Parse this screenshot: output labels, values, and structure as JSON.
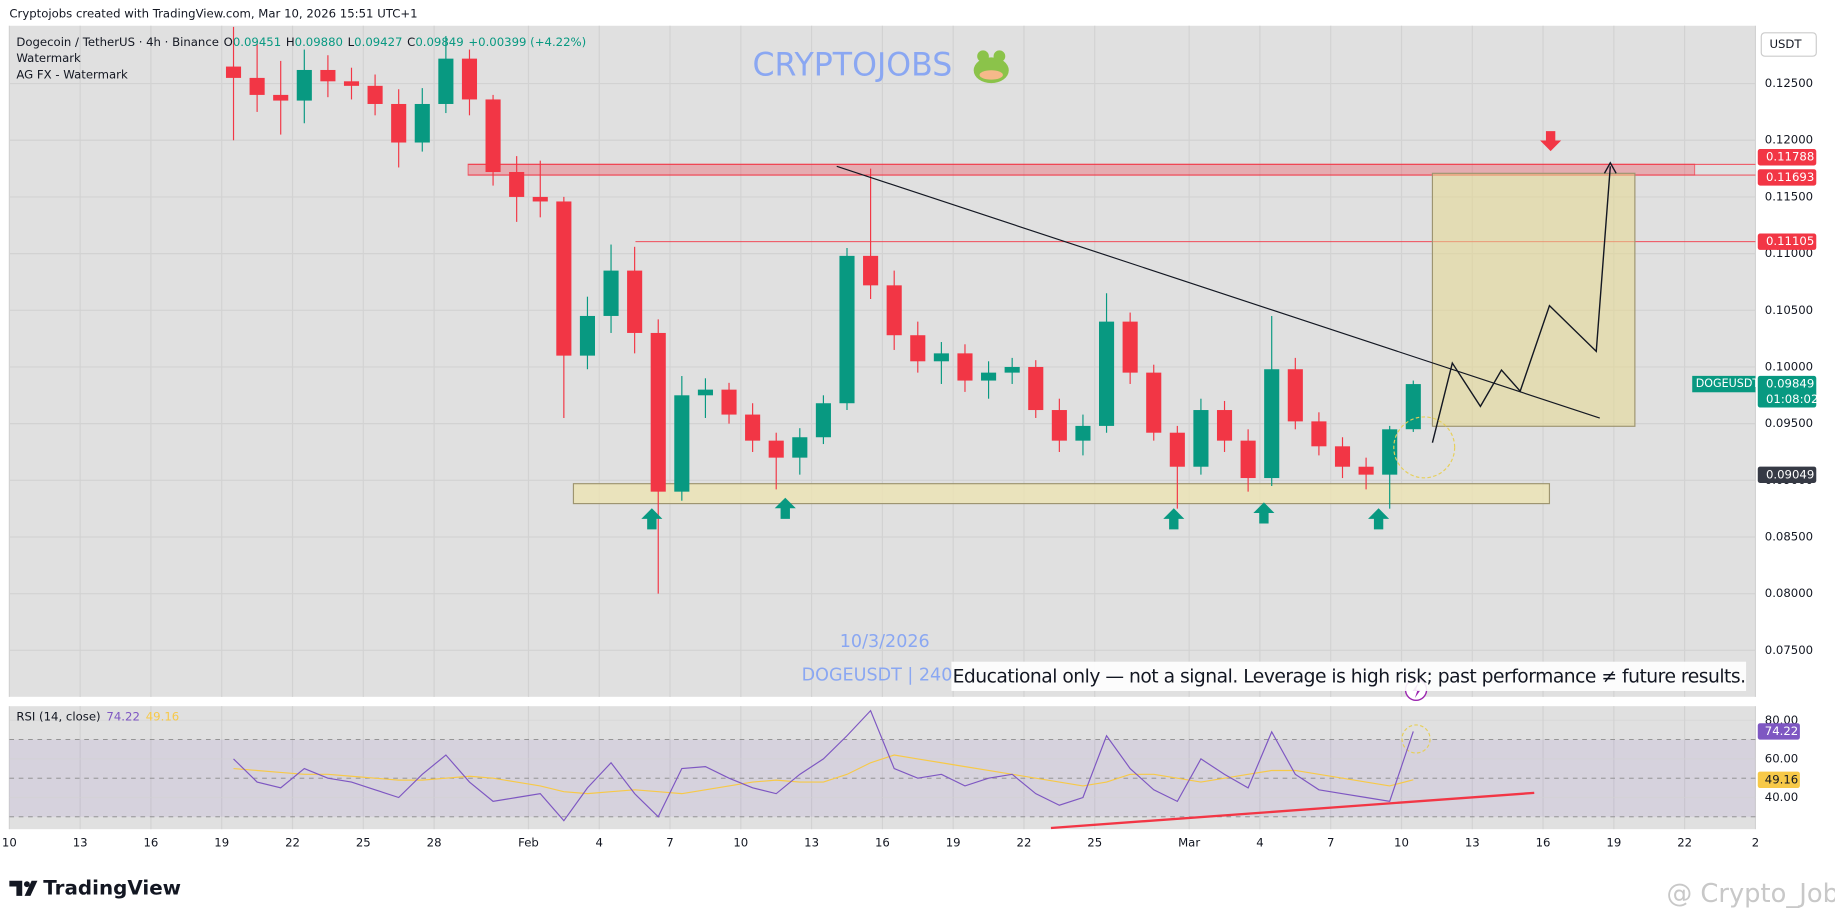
{
  "header": {
    "credit": "Cryptojobs created with TradingView.com, Mar 10, 2026 15:51 UTC+1"
  },
  "overlay": {
    "watermark": "CRYPTOJOBS",
    "date": "10/3/2026",
    "symbol_interval": "DOGEUSDT | 240",
    "disclaimer": "Educational only — not a signal. Leverage is high risk; past performance ≠ future results."
  },
  "footer": {
    "logo": "TradingView",
    "handle": "@ Crypto_Jobs"
  },
  "chart_data": {
    "type": "candlestick",
    "title": "Dogecoin / TetherUS · 4h · Binance",
    "ohlc_legend": [
      {
        "label": "O",
        "value": "0.09451"
      },
      {
        "label": "H",
        "value": "0.09880"
      },
      {
        "label": "L",
        "value": "0.09427"
      },
      {
        "label": "C",
        "value": "0.09849"
      }
    ],
    "change": "+0.00399 (+4.22%)",
    "indicators": [
      "Watermark",
      "AG FX - Watermark"
    ],
    "currency": "USDT",
    "symbol": "DOGEUSDT",
    "countdown": "01:08:02",
    "up_color": "#089981",
    "down_color": "#f23645",
    "grid": true,
    "x": [
      "2026-01-19",
      "2026-01-20",
      "2026-01-21",
      "2026-01-22",
      "2026-01-23",
      "2026-01-24",
      "2026-01-25",
      "2026-01-26",
      "2026-01-27",
      "2026-01-28",
      "2026-01-29",
      "2026-01-30",
      "2026-01-31",
      "2026-02-01",
      "2026-02-02",
      "2026-02-03",
      "2026-02-04",
      "2026-02-05",
      "2026-02-06",
      "2026-02-07",
      "2026-02-08",
      "2026-02-09",
      "2026-02-10",
      "2026-02-11",
      "2026-02-12",
      "2026-02-13",
      "2026-02-14",
      "2026-02-15",
      "2026-02-16",
      "2026-02-17",
      "2026-02-18",
      "2026-02-19",
      "2026-02-20",
      "2026-02-21",
      "2026-02-22",
      "2026-02-23",
      "2026-02-24",
      "2026-02-25",
      "2026-02-26",
      "2026-02-27",
      "2026-02-28",
      "2026-03-01",
      "2026-03-02",
      "2026-03-03",
      "2026-03-04",
      "2026-03-05",
      "2026-03-06",
      "2026-03-07",
      "2026-03-08",
      "2026-03-09",
      "2026-03-10"
    ],
    "open": [
      0.1265,
      0.1255,
      0.124,
      0.1235,
      0.1262,
      0.1252,
      0.1248,
      0.1232,
      0.1198,
      0.1232,
      0.1272,
      0.1236,
      0.1172,
      0.115,
      0.1146,
      0.101,
      0.1045,
      0.1085,
      0.103,
      0.089,
      0.0975,
      0.098,
      0.0958,
      0.0935,
      0.092,
      0.0938,
      0.0968,
      0.1098,
      0.1072,
      0.1028,
      0.1005,
      0.1012,
      0.0988,
      0.0995,
      0.1,
      0.0962,
      0.0935,
      0.0948,
      0.104,
      0.0995,
      0.0942,
      0.0912,
      0.0962,
      0.0935,
      0.0902,
      0.0998,
      0.0952,
      0.093,
      0.0912,
      0.0905,
      0.09451
    ],
    "high": [
      0.13,
      0.1285,
      0.127,
      0.128,
      0.1275,
      0.1264,
      0.1258,
      0.1245,
      0.1246,
      0.1292,
      0.128,
      0.124,
      0.1186,
      0.1182,
      0.115,
      0.1062,
      0.1108,
      0.1106,
      0.1042,
      0.0992,
      0.099,
      0.0986,
      0.0968,
      0.0942,
      0.0946,
      0.0975,
      0.1105,
      0.1175,
      0.1085,
      0.104,
      0.1022,
      0.102,
      0.1005,
      0.1008,
      0.1006,
      0.0972,
      0.0958,
      0.1065,
      0.1048,
      0.1002,
      0.0948,
      0.0972,
      0.097,
      0.0945,
      0.1045,
      0.1008,
      0.096,
      0.0938,
      0.092,
      0.0948,
      0.0988
    ],
    "low": [
      0.12,
      0.1225,
      0.1205,
      0.1215,
      0.1238,
      0.1236,
      0.1222,
      0.1176,
      0.119,
      0.1224,
      0.1222,
      0.116,
      0.1128,
      0.1132,
      0.0955,
      0.0998,
      0.103,
      0.1012,
      0.08,
      0.0882,
      0.0955,
      0.095,
      0.0925,
      0.0892,
      0.0905,
      0.0932,
      0.0962,
      0.106,
      0.1015,
      0.0995,
      0.0985,
      0.0978,
      0.0972,
      0.0985,
      0.0955,
      0.0925,
      0.0922,
      0.0942,
      0.0985,
      0.0935,
      0.0875,
      0.0905,
      0.0925,
      0.089,
      0.0895,
      0.0945,
      0.0922,
      0.0902,
      0.0892,
      0.0875,
      0.09427
    ],
    "close": [
      0.1255,
      0.124,
      0.1235,
      0.1262,
      0.1252,
      0.1248,
      0.1232,
      0.1198,
      0.1232,
      0.1272,
      0.1236,
      0.1172,
      0.115,
      0.1146,
      0.101,
      0.1045,
      0.1085,
      0.103,
      0.089,
      0.0975,
      0.098,
      0.0958,
      0.0935,
      0.092,
      0.0938,
      0.0968,
      0.1098,
      0.1072,
      0.1028,
      0.1005,
      0.1012,
      0.0988,
      0.0995,
      0.1,
      0.0962,
      0.0935,
      0.0948,
      0.104,
      0.0995,
      0.0942,
      0.0912,
      0.0962,
      0.0935,
      0.0902,
      0.0998,
      0.0952,
      0.093,
      0.0912,
      0.0905,
      0.0945,
      0.09849
    ],
    "xlim": [
      "2026-01-10",
      "2026-03-25"
    ],
    "xticks": [
      {
        "value": "2026-01-10",
        "label": "10"
      },
      {
        "value": "2026-01-13",
        "label": "13"
      },
      {
        "value": "2026-01-16",
        "label": "16"
      },
      {
        "value": "2026-01-19",
        "label": "19"
      },
      {
        "value": "2026-01-22",
        "label": "22"
      },
      {
        "value": "2026-01-25",
        "label": "25"
      },
      {
        "value": "2026-01-28",
        "label": "28"
      },
      {
        "value": "2026-02-01",
        "label": "Feb"
      },
      {
        "value": "2026-02-04",
        "label": "4"
      },
      {
        "value": "2026-02-07",
        "label": "7"
      },
      {
        "value": "2026-02-10",
        "label": "10"
      },
      {
        "value": "2026-02-13",
        "label": "13"
      },
      {
        "value": "2026-02-16",
        "label": "16"
      },
      {
        "value": "2026-02-19",
        "label": "19"
      },
      {
        "value": "2026-02-22",
        "label": "22"
      },
      {
        "value": "2026-02-25",
        "label": "25"
      },
      {
        "value": "2026-03-01",
        "label": "Mar"
      },
      {
        "value": "2026-03-04",
        "label": "4"
      },
      {
        "value": "2026-03-07",
        "label": "7"
      },
      {
        "value": "2026-03-10",
        "label": "10"
      },
      {
        "value": "2026-03-13",
        "label": "13"
      },
      {
        "value": "2026-03-16",
        "label": "16"
      },
      {
        "value": "2026-03-19",
        "label": "19"
      },
      {
        "value": "2026-03-22",
        "label": "22"
      },
      {
        "value": "2026-03-25",
        "label": "2"
      }
    ],
    "ylim": [
      0.0709,
      0.1301
    ],
    "yticks": [
      {
        "value": 0.125,
        "label": "0.12500"
      },
      {
        "value": 0.12,
        "label": "0.12000"
      },
      {
        "value": 0.115,
        "label": "0.11500"
      },
      {
        "value": 0.11,
        "label": "0.11000"
      },
      {
        "value": 0.105,
        "label": "0.10500"
      },
      {
        "value": 0.1,
        "label": "0.10000"
      },
      {
        "value": 0.095,
        "label": "0.09500"
      },
      {
        "value": 0.09,
        "label": "0.09000"
      },
      {
        "value": 0.085,
        "label": "0.08500"
      },
      {
        "value": 0.08,
        "label": "0.08000"
      },
      {
        "value": 0.075,
        "label": "0.07500"
      }
    ],
    "price_lines": [
      {
        "price": 0.11788,
        "color": "#f23645"
      },
      {
        "price": 0.11693,
        "color": "#f23645"
      },
      {
        "price": 0.11105,
        "color": "#f23645"
      },
      {
        "price": 0.09049,
        "color": "#363a45"
      }
    ],
    "rsi": {
      "title": "RSI (14, close)",
      "color": "#7e57c2",
      "ma_color": "#f7c948",
      "values": [
        60,
        48,
        45,
        55,
        50,
        48,
        44,
        40,
        52,
        62,
        48,
        38,
        40,
        42,
        28,
        45,
        58,
        42,
        30,
        55,
        56,
        50,
        45,
        42,
        52,
        60,
        72,
        85,
        55,
        50,
        52,
        46,
        50,
        52,
        42,
        36,
        40,
        72,
        55,
        44,
        38,
        60,
        52,
        45,
        74,
        52,
        44,
        42,
        40,
        38,
        74.22
      ],
      "ma_values": [
        55,
        54,
        53,
        52,
        52,
        51,
        50,
        49,
        49,
        50,
        51,
        50,
        48,
        46,
        43,
        42,
        43,
        44,
        43,
        42,
        44,
        46,
        48,
        49,
        48,
        48,
        52,
        58,
        62,
        60,
        58,
        56,
        54,
        52,
        50,
        48,
        46,
        48,
        52,
        52,
        50,
        48,
        50,
        52,
        54,
        54,
        52,
        50,
        48,
        46,
        49.16
      ],
      "bands": [
        70,
        50,
        30
      ],
      "ylim": [
        23.6,
        87.3
      ],
      "yticks": [
        {
          "value": 80,
          "label": "80.00"
        },
        {
          "value": 60,
          "label": "60.00"
        },
        {
          "value": 40,
          "label": "40.00"
        }
      ]
    }
  }
}
